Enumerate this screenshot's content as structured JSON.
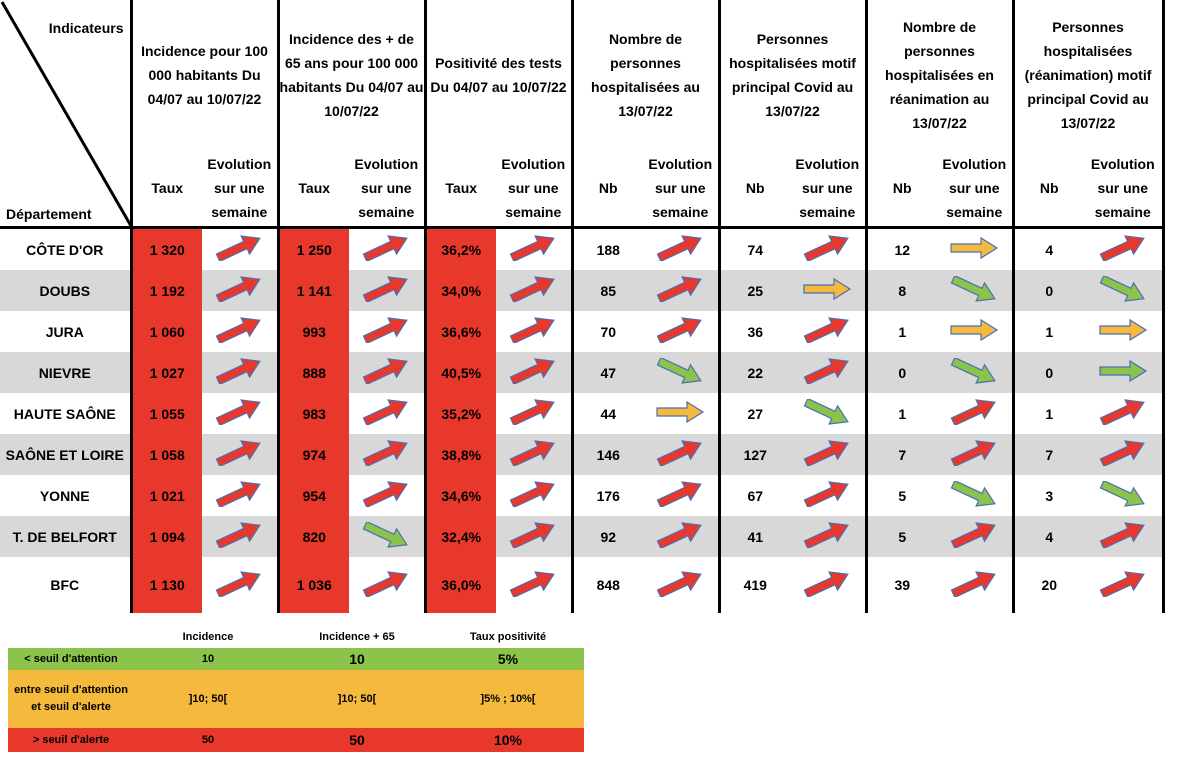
{
  "header": {
    "indicateurs": "Indicateurs",
    "departement": "Département",
    "groups": [
      "Incidence pour 100 000 habitants Du 04/07 au 10/07/22",
      "Incidence des + de 65 ans pour 100 000 habitants Du 04/07 au 10/07/22",
      "Positivité des tests Du 04/07 au 10/07/22",
      "Nombre de personnes hospitalisées au 13/07/22",
      "Personnes hospitalisées motif principal Covid au 13/07/22",
      "Nombre de personnes hospitalisées en réanimation au 13/07/22",
      "Personnes hospitalisées (réanimation) motif principal Covid au 13/07/22"
    ],
    "sub_labels": [
      "Taux",
      "Evolution sur une semaine",
      "Taux",
      "Evolution sur une semaine",
      "Taux",
      "Evolution sur une semaine",
      "Nb",
      "Evolution sur une semaine",
      "Nb",
      "Evolution sur une semaine",
      "Nb",
      "Evolution sur une semaine",
      "Nb",
      "Evolution sur une semaine"
    ]
  },
  "rows": [
    {
      "name": "CÔTE D'OR",
      "values": [
        "1 320",
        "1 250",
        "36,2%",
        "188",
        "74",
        "12",
        "4"
      ],
      "trends": [
        "up-red",
        "up-red",
        "up-red",
        "up-red",
        "up-red",
        "flat-orange",
        "up-red"
      ]
    },
    {
      "name": "DOUBS",
      "values": [
        "1 192",
        "1 141",
        "34,0%",
        "85",
        "25",
        "8",
        "0"
      ],
      "trends": [
        "up-red",
        "up-red",
        "up-red",
        "up-red",
        "flat-orange",
        "down-green",
        "down-green"
      ]
    },
    {
      "name": "JURA",
      "values": [
        "1 060",
        "993",
        "36,6%",
        "70",
        "36",
        "1",
        "1"
      ],
      "trends": [
        "up-red",
        "up-red",
        "up-red",
        "up-red",
        "up-red",
        "flat-orange",
        "flat-orange"
      ]
    },
    {
      "name": "NIEVRE",
      "values": [
        "1 027",
        "888",
        "40,5%",
        "47",
        "22",
        "0",
        "0"
      ],
      "trends": [
        "up-red",
        "up-red",
        "up-red",
        "down-green",
        "up-red",
        "down-green",
        "flat-green"
      ]
    },
    {
      "name": "HAUTE SAÔNE",
      "values": [
        "1 055",
        "983",
        "35,2%",
        "44",
        "27",
        "1",
        "1"
      ],
      "trends": [
        "up-red",
        "up-red",
        "up-red",
        "flat-orange",
        "down-green",
        "up-red",
        "up-red"
      ]
    },
    {
      "name": "SAÔNE ET LOIRE",
      "values": [
        "1 058",
        "974",
        "38,8%",
        "146",
        "127",
        "7",
        "7"
      ],
      "trends": [
        "up-red",
        "up-red",
        "up-red",
        "up-red",
        "up-red",
        "up-red",
        "up-red"
      ]
    },
    {
      "name": "YONNE",
      "values": [
        "1 021",
        "954",
        "34,6%",
        "176",
        "67",
        "5",
        "3"
      ],
      "trends": [
        "up-red",
        "up-red",
        "up-red",
        "up-red",
        "up-red",
        "down-green",
        "down-green"
      ]
    },
    {
      "name": "T. DE BELFORT",
      "values": [
        "1 094",
        "820",
        "32,4%",
        "92",
        "41",
        "5",
        "4"
      ],
      "trends": [
        "up-red",
        "down-green",
        "up-red",
        "up-red",
        "up-red",
        "up-red",
        "up-red"
      ]
    },
    {
      "name": "BFC",
      "values": [
        "1 130",
        "1 036",
        "36,0%",
        "848",
        "419",
        "39",
        "20"
      ],
      "trends": [
        "up-red",
        "up-red",
        "up-red",
        "up-red",
        "up-red",
        "up-red",
        "up-red"
      ]
    }
  ],
  "legend": {
    "headers": [
      "Incidence",
      "Incidence + 65",
      "Taux positivité"
    ],
    "rows": [
      {
        "label": "< seuil d'attention",
        "values": [
          "10",
          "10",
          "5%"
        ],
        "color": "#8cc34a"
      },
      {
        "label": "entre seuil d'attention et seuil d'alerte",
        "values": [
          "]10; 50[",
          "]10; 50[",
          "]5% ; 10%["
        ],
        "color": "#f5b93e"
      },
      {
        "label": "> seuil d'alerte",
        "values": [
          "50",
          "50",
          "10%"
        ],
        "color": "#e8382b"
      }
    ]
  },
  "colors": {
    "red_cell": "#e8382b",
    "gray_row": "#d8d8d8",
    "arrow_red": "#e8382b",
    "arrow_orange": "#f5b93e",
    "arrow_green": "#8cc34a",
    "arrow_outline": "#4a6fb5"
  }
}
